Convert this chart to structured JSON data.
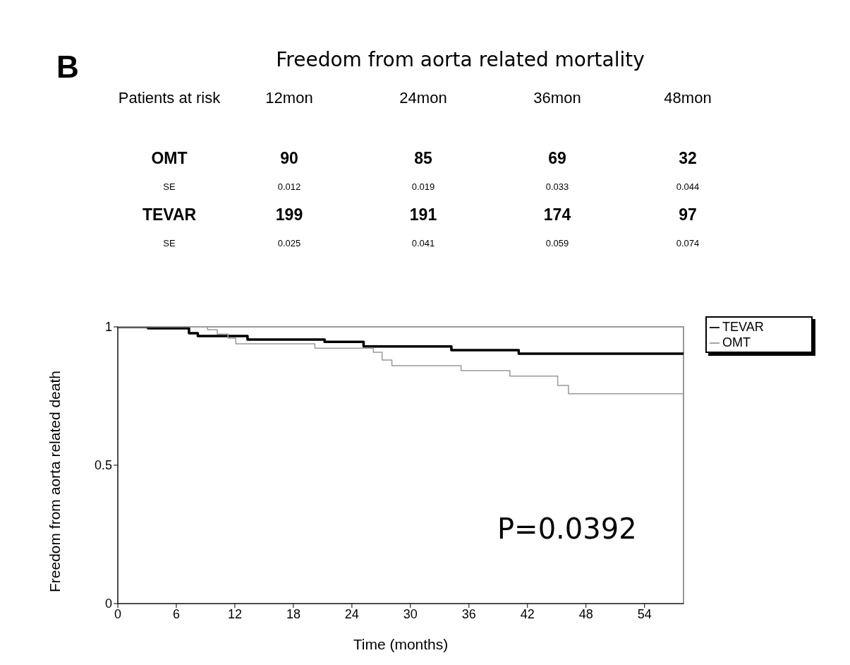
{
  "chart_data": {
    "type": "step",
    "title": "Freedom from aorta related mortality",
    "xlabel": "Time (months)",
    "ylabel": "Freedom from aorta related death",
    "annotations": [
      "B",
      "P=0.0392",
      "Patients at risk",
      "12mon",
      "24mon",
      "36mon",
      "48mon",
      "OMT",
      "90",
      "85",
      "69",
      "32",
      "SE",
      "0.012",
      "0.019",
      "0.033",
      "0.044",
      "TEVAR",
      "199",
      "191",
      "174",
      "97",
      "SE",
      "0.025",
      "0.041",
      "0.059",
      "0.074"
    ],
    "series": [
      {
        "name": "TEVAR",
        "color": "#000000",
        "x": [
          0,
          3.1,
          7.3,
          8.2,
          13.3,
          21.2,
          25.2,
          34.2,
          41.1,
          58
        ],
        "values": [
          1,
          0.995,
          0.977,
          0.967,
          0.954,
          0.946,
          0.929,
          0.916,
          0.903,
          0.903
        ]
      },
      {
        "name": "OMT",
        "color": "#999999",
        "x": [
          0,
          9.2,
          10.2,
          11.3,
          12.1,
          20.2,
          26.2,
          27.1,
          28.1,
          35.2,
          40.2,
          45.1,
          46.2,
          58
        ],
        "values": [
          1,
          0.99,
          0.974,
          0.959,
          0.939,
          0.923,
          0.908,
          0.88,
          0.86,
          0.842,
          0.822,
          0.788,
          0.758,
          0.758
        ]
      }
    ],
    "xlim": [
      0,
      58
    ],
    "xticks": [
      0,
      6,
      12,
      18,
      24,
      30,
      36,
      42,
      48,
      54
    ],
    "ylim": [
      0,
      1
    ],
    "yticks": [
      0,
      0.5,
      1
    ],
    "grid": false,
    "legend": "top right",
    "marker": "none",
    "line_style": "solid"
  }
}
